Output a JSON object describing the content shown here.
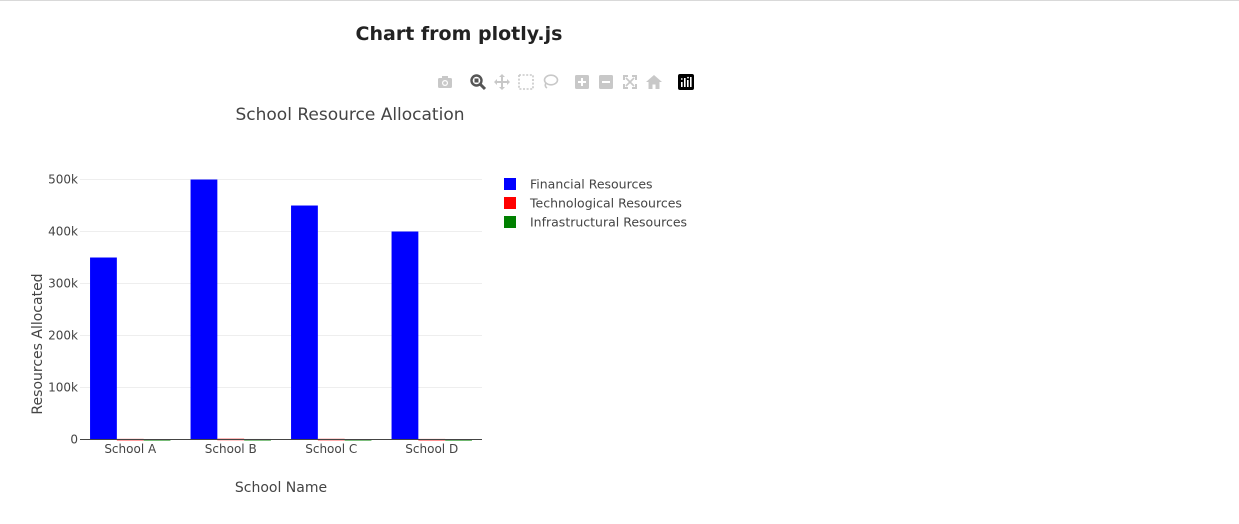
{
  "page": {
    "title": "Chart from plotly.js"
  },
  "modebar": {
    "buttons": [
      {
        "name": "camera-icon",
        "title": "Download plot as a png"
      },
      {
        "name": "zoom-icon",
        "title": "Zoom"
      },
      {
        "name": "pan-icon",
        "title": "Pan"
      },
      {
        "name": "box-select-icon",
        "title": "Box Select"
      },
      {
        "name": "lasso-select-icon",
        "title": "Lasso Select"
      },
      {
        "name": "zoom-in-icon",
        "title": "Zoom in"
      },
      {
        "name": "zoom-out-icon",
        "title": "Zoom out"
      },
      {
        "name": "autoscale-icon",
        "title": "Autoscale"
      },
      {
        "name": "reset-axes-icon",
        "title": "Reset axes"
      },
      {
        "name": "plotly-logo-icon",
        "title": "Produced with Plotly"
      }
    ]
  },
  "chart_data": {
    "type": "bar",
    "title": "School Resource Allocation",
    "xlabel": "School Name",
    "ylabel": "Resources Allocated",
    "categories": [
      "School A",
      "School B",
      "School C",
      "School D"
    ],
    "series": [
      {
        "name": "Financial Resources",
        "color": "#0000ff",
        "values": [
          350000,
          500000,
          450000,
          400000
        ]
      },
      {
        "name": "Technological Resources",
        "color": "#ff0000",
        "values": [
          1200,
          1500,
          1300,
          1100
        ]
      },
      {
        "name": "Infrastructural Resources",
        "color": "#008000",
        "values": [
          900,
          1000,
          950,
          850
        ]
      }
    ],
    "ylim": [
      0,
      526000
    ],
    "yticks": [
      0,
      100000,
      200000,
      300000,
      400000,
      500000
    ],
    "ytick_labels": [
      "0",
      "100k",
      "200k",
      "300k",
      "400k",
      "500k"
    ],
    "grid": true,
    "legend": "right",
    "legend_placement": "top-right"
  }
}
